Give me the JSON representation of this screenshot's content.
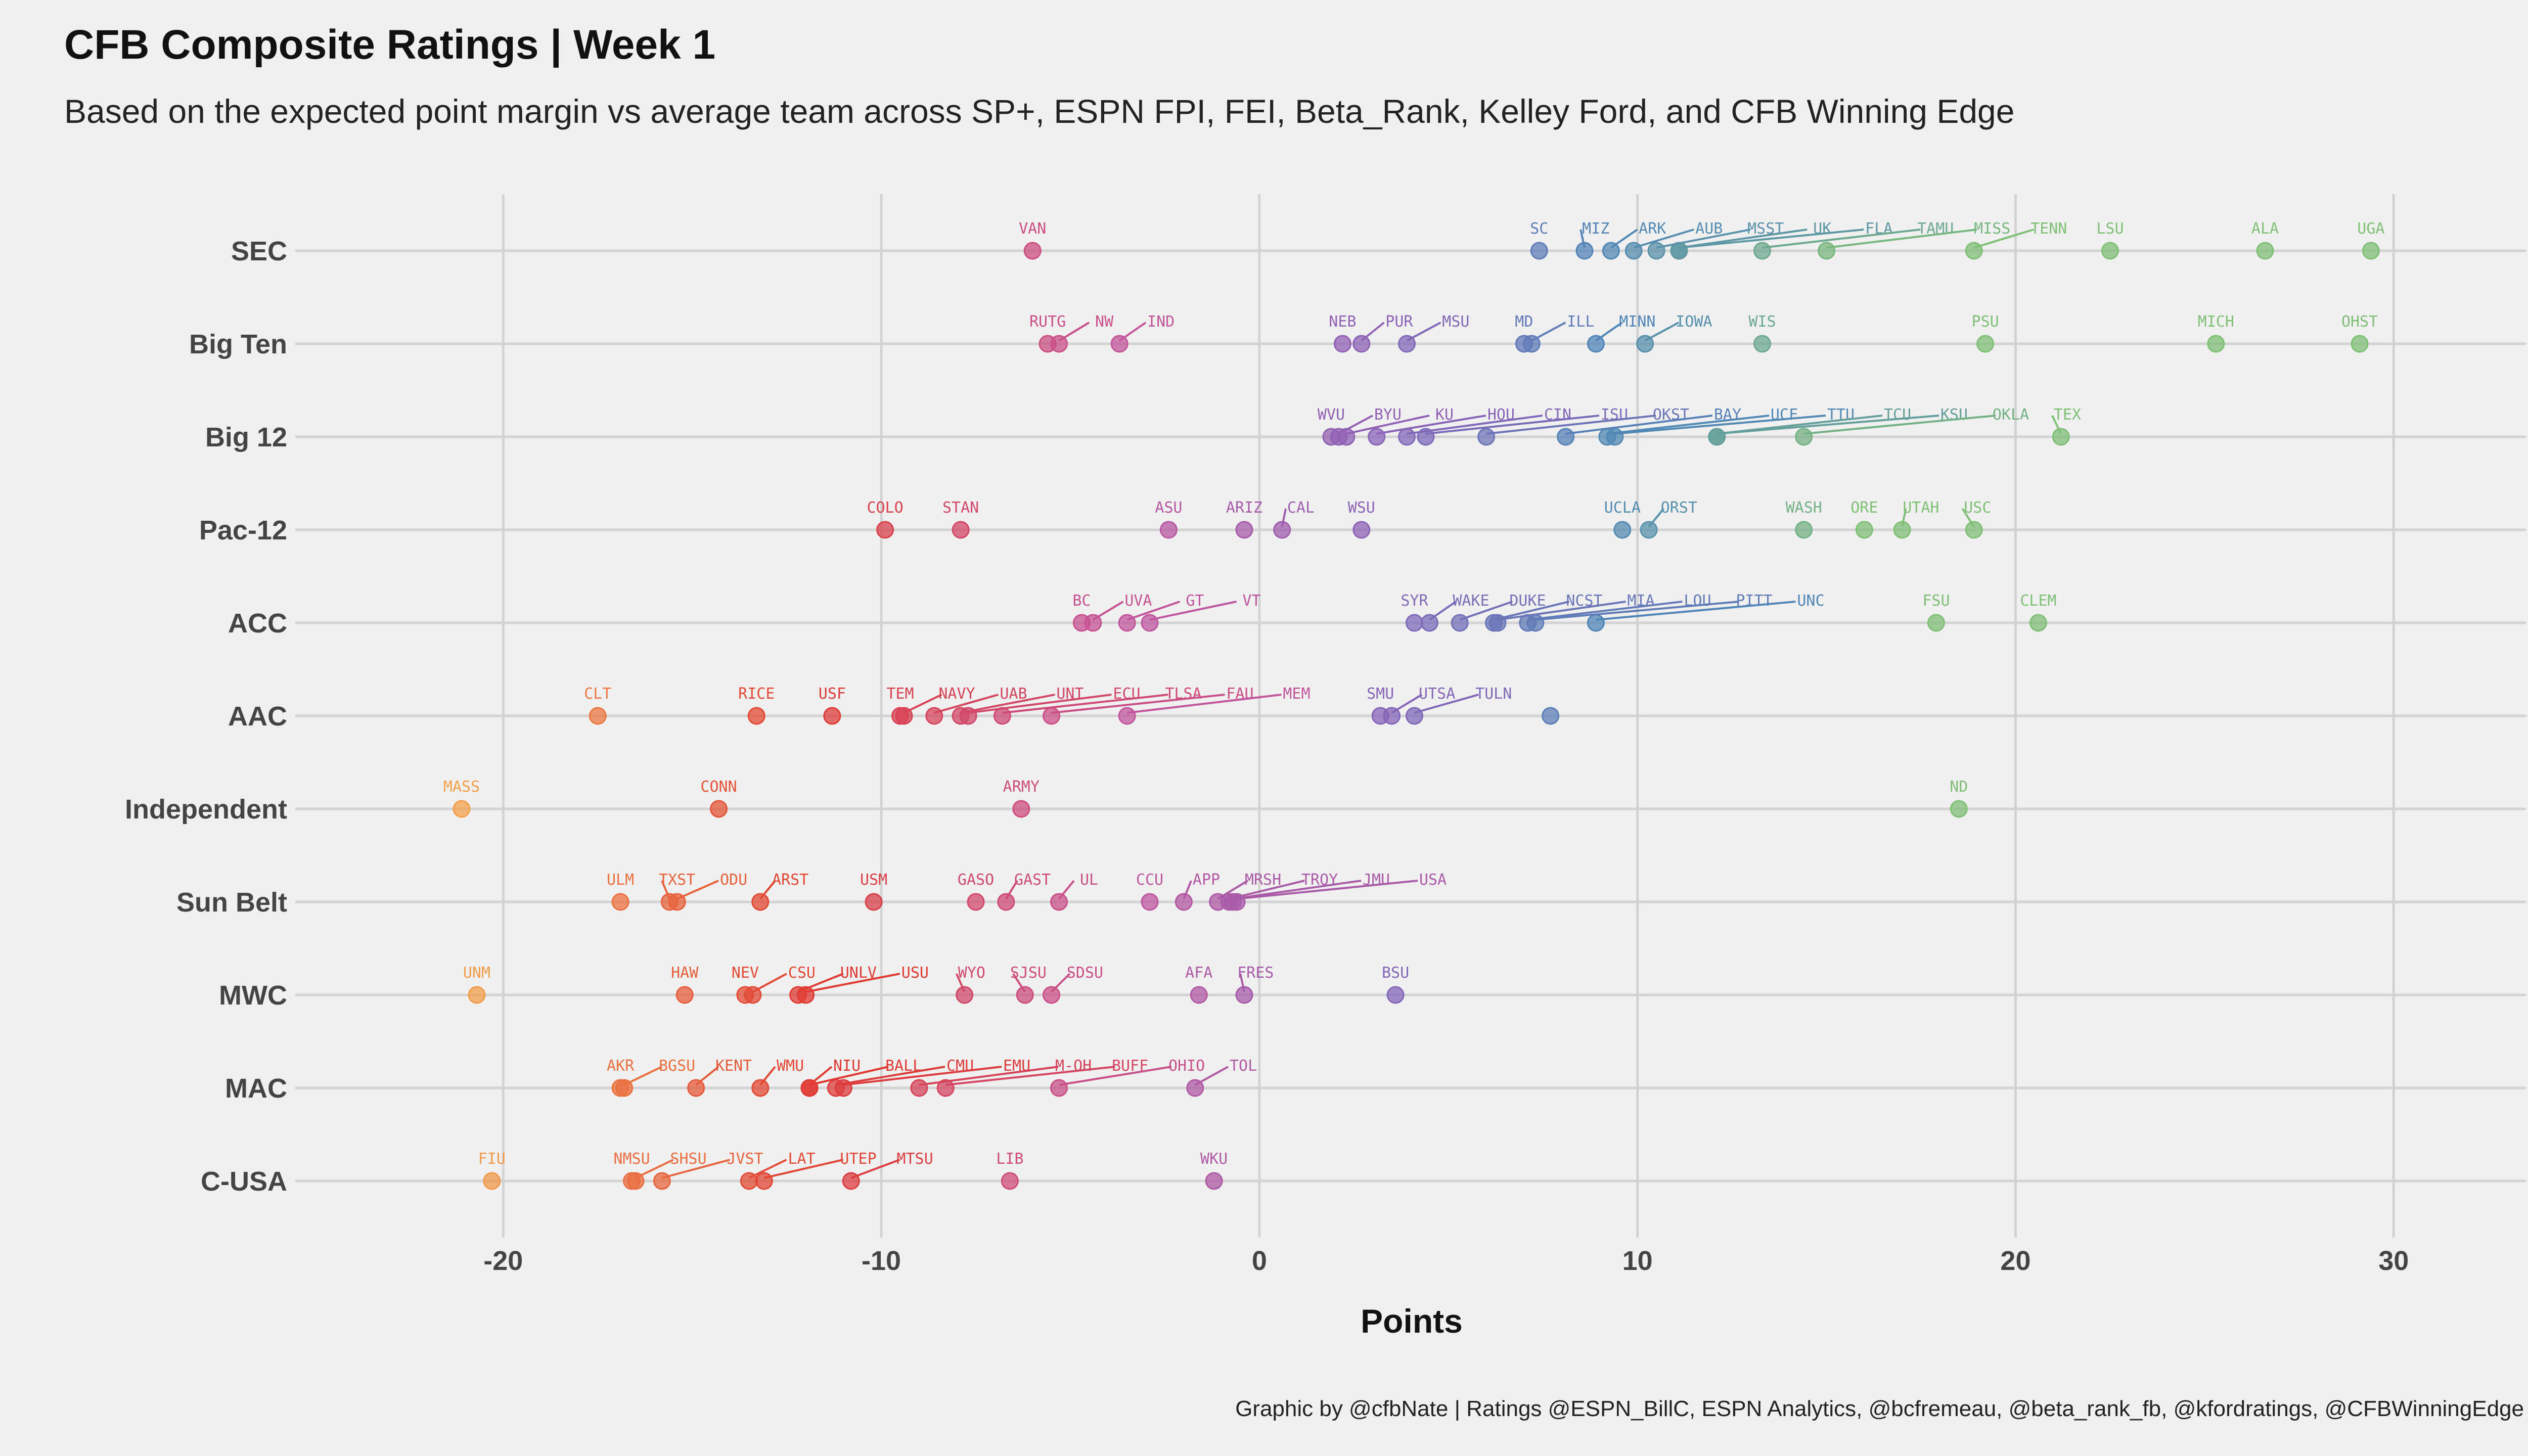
{
  "title": "CFB Composite Ratings | Week 1",
  "subtitle": "Based on the expected point margin vs average team across SP+, ESPN FPI, FEI, Beta_Rank, Kelley Ford, and CFB Winning Edge",
  "caption": "Graphic by @cfbNate | Ratings @ESPN_BillC, ESPN Analytics, @bcfremeau, @beta_rank_fb, @kfordratings, @CFBWinningEdge",
  "chart_data": {
    "type": "scatter",
    "xlabel": "Points",
    "ylabel": "",
    "xlim": [
      -25.5,
      33.5
    ],
    "x_ticks": [
      -20,
      -10,
      0,
      10,
      20,
      30
    ],
    "x_tick_labels": [
      "-20",
      "-10",
      "0",
      "10",
      "20",
      "30"
    ],
    "grid": true,
    "color_scale": {
      "low": "#f4a04b",
      "lowmid": "#e03a32",
      "mid": "#c6549a",
      "midhigh": "#8a63b8",
      "high_mid": "#4f86b8",
      "high": "#7fbf76"
    },
    "conferences": [
      {
        "name": "SEC",
        "teams": [
          [
            "VAN",
            -6.0
          ],
          [
            "SC",
            7.4
          ],
          [
            "MIZ",
            8.6
          ],
          [
            "ARK",
            9.3
          ],
          [
            "AUB",
            9.9
          ],
          [
            "MSST",
            10.5
          ],
          [
            "UK",
            11.1
          ],
          [
            "FLA",
            11.1
          ],
          [
            "TAMU",
            13.3
          ],
          [
            "MISS",
            15.0
          ],
          [
            "TENN",
            18.9
          ],
          [
            "LSU",
            22.5
          ],
          [
            "ALA",
            26.6
          ],
          [
            "UGA",
            29.4
          ]
        ]
      },
      {
        "name": "Big Ten",
        "teams": [
          [
            "RUTG",
            -5.6
          ],
          [
            "NW",
            -5.3
          ],
          [
            "IND",
            -3.7
          ],
          [
            "NEB",
            2.2
          ],
          [
            "PUR",
            2.7
          ],
          [
            "MSU",
            3.9
          ],
          [
            "MD",
            7.0
          ],
          [
            "ILL",
            7.2
          ],
          [
            "MINN",
            8.9
          ],
          [
            "IOWA",
            10.2
          ],
          [
            "WIS",
            13.3
          ],
          [
            "PSU",
            19.2
          ],
          [
            "MICH",
            25.3
          ],
          [
            "OHST",
            29.1
          ]
        ]
      },
      {
        "name": "Big 12",
        "teams": [
          [
            "WVU",
            1.9
          ],
          [
            "BYU",
            2.1
          ],
          [
            "KU",
            2.3
          ],
          [
            "HOU",
            3.1
          ],
          [
            "CIN",
            3.9
          ],
          [
            "ISU",
            4.4
          ],
          [
            "OKST",
            6.0
          ],
          [
            "BAY",
            8.1
          ],
          [
            "UCF",
            9.2
          ],
          [
            "TTU",
            9.4
          ],
          [
            "TCU",
            12.1
          ],
          [
            "KSU",
            12.1
          ],
          [
            "OKLA",
            14.4
          ],
          [
            "TEX",
            21.2
          ]
        ]
      },
      {
        "name": "Pac-12",
        "teams": [
          [
            "COLO",
            -9.9
          ],
          [
            "STAN",
            -7.9
          ],
          [
            "ASU",
            -2.4
          ],
          [
            "ARIZ",
            -0.4
          ],
          [
            "CAL",
            0.6
          ],
          [
            "WSU",
            2.7
          ],
          [
            "UCLA",
            9.6
          ],
          [
            "ORST",
            10.3
          ],
          [
            "WASH",
            14.4
          ],
          [
            "ORE",
            16.0
          ],
          [
            "UTAH",
            17.0
          ],
          [
            "USC",
            18.9
          ]
        ]
      },
      {
        "name": "ACC",
        "teams": [
          [
            "BC",
            -4.7
          ],
          [
            "UVA",
            -4.4
          ],
          [
            "GT",
            -3.5
          ],
          [
            "VT",
            -2.9
          ],
          [
            "SYR",
            4.1
          ],
          [
            "WAKE",
            4.5
          ],
          [
            "DUKE",
            5.3
          ],
          [
            "NCST",
            6.2
          ],
          [
            "MIA",
            6.3
          ],
          [
            "LOU",
            7.1
          ],
          [
            "PITT",
            7.3
          ],
          [
            "UNC",
            8.9
          ],
          [
            "FSU",
            17.9
          ],
          [
            "CLEM",
            20.6
          ]
        ]
      },
      {
        "name": "AAC",
        "teams": [
          [
            "CLT",
            -17.5
          ],
          [
            "RICE",
            -13.3
          ],
          [
            "USF",
            -11.3
          ],
          [
            "TEM",
            -9.5
          ],
          [
            "NAVY",
            -9.4
          ],
          [
            "UAB",
            -8.6
          ],
          [
            "UNT",
            -7.9
          ],
          [
            "ECU",
            -7.7
          ],
          [
            "TLSA",
            -6.8
          ],
          [
            "FAU",
            -5.5
          ],
          [
            "MEM",
            -3.5
          ],
          [
            "SMU",
            3.2
          ],
          [
            "UTSA",
            3.5
          ],
          [
            "TULN",
            4.1
          ],
          [
            "",
            7.7
          ]
        ]
      },
      {
        "name": "Independent",
        "teams": [
          [
            "MASS",
            -21.1
          ],
          [
            "CONN",
            -14.3
          ],
          [
            "ARMY",
            -6.3
          ],
          [
            "ND",
            18.5
          ]
        ]
      },
      {
        "name": "Sun Belt",
        "teams": [
          [
            "ULM",
            -16.9
          ],
          [
            "TXST",
            -15.6
          ],
          [
            "ODU",
            -15.4
          ],
          [
            "ARST",
            -13.2
          ],
          [
            "USM",
            -10.2
          ],
          [
            "GASO",
            -7.5
          ],
          [
            "GAST",
            -6.7
          ],
          [
            "UL",
            -5.3
          ],
          [
            "CCU",
            -2.9
          ],
          [
            "APP",
            -2.0
          ],
          [
            "MRSH",
            -1.1
          ],
          [
            "TROY",
            -0.8
          ],
          [
            "JMU",
            -0.7
          ],
          [
            "USA",
            -0.6
          ]
        ]
      },
      {
        "name": "MWC",
        "teams": [
          [
            "UNM",
            -20.7
          ],
          [
            "HAW",
            -15.2
          ],
          [
            "NEV",
            -13.6
          ],
          [
            "CSU",
            -13.4
          ],
          [
            "UNLV",
            -12.2
          ],
          [
            "USU",
            -12.0
          ],
          [
            "WYO",
            -7.8
          ],
          [
            "SJSU",
            -6.2
          ],
          [
            "SDSU",
            -5.5
          ],
          [
            "AFA",
            -1.6
          ],
          [
            "FRES",
            -0.4
          ],
          [
            "BSU",
            3.6
          ]
        ]
      },
      {
        "name": "MAC",
        "teams": [
          [
            "AKR",
            -16.9
          ],
          [
            "BGSU",
            -16.8
          ],
          [
            "KENT",
            -14.9
          ],
          [
            "WMU",
            -13.2
          ],
          [
            "NIU",
            -11.9
          ],
          [
            "BALL",
            -11.9
          ],
          [
            "CMU",
            -11.2
          ],
          [
            "EMU",
            -11.0
          ],
          [
            "M-OH",
            -9.0
          ],
          [
            "BUFF",
            -8.3
          ],
          [
            "OHIO",
            -5.3
          ],
          [
            "TOL",
            -1.7
          ]
        ]
      },
      {
        "name": "C-USA",
        "teams": [
          [
            "FIU",
            -20.3
          ],
          [
            "NMSU",
            -16.6
          ],
          [
            "SHSU",
            -16.5
          ],
          [
            "JVST",
            -15.8
          ],
          [
            "LAT",
            -13.5
          ],
          [
            "UTEP",
            -13.1
          ],
          [
            "MTSU",
            -10.8
          ],
          [
            "LIB",
            -6.6
          ],
          [
            "WKU",
            -1.2
          ]
        ]
      }
    ]
  }
}
